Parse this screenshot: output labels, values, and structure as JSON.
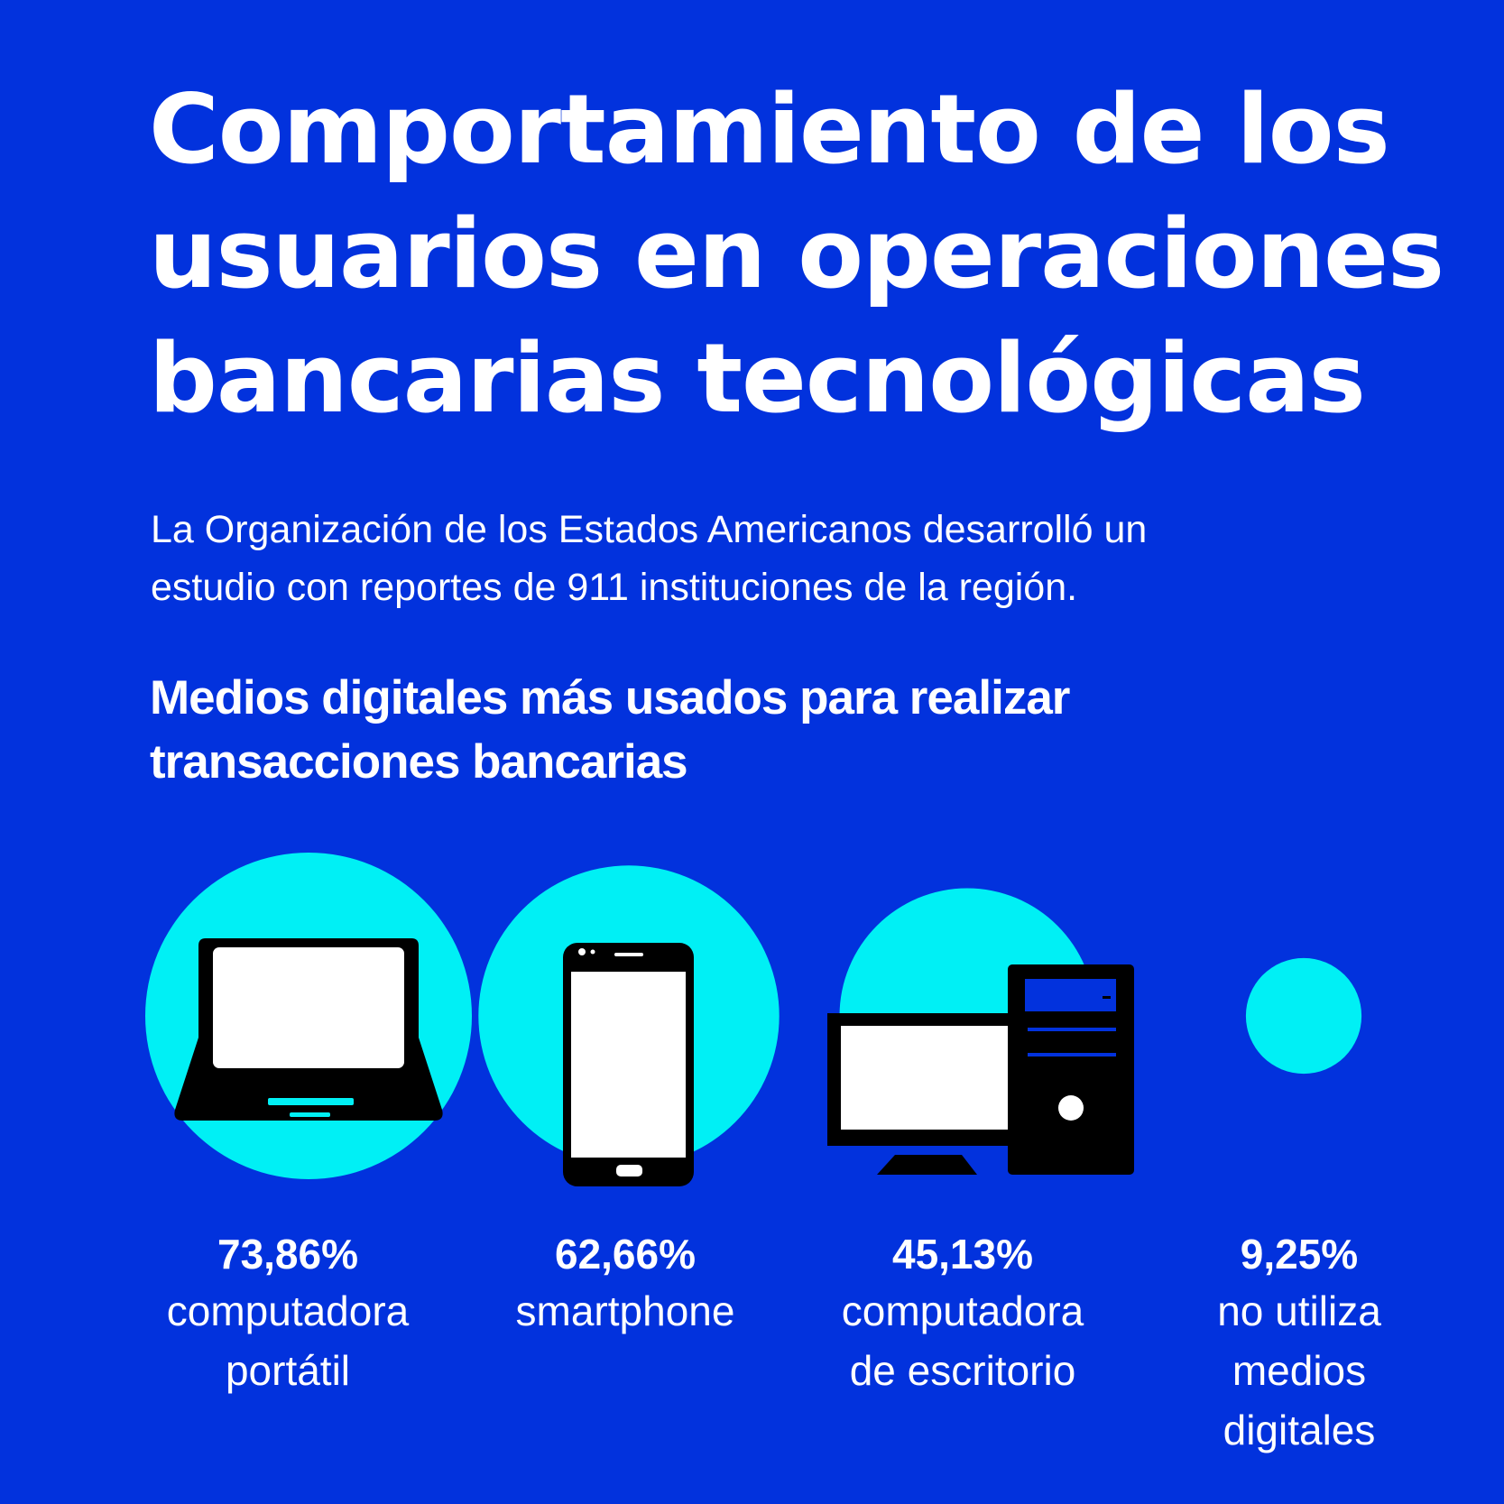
{
  "title": {
    "line1": "Comportamiento de los",
    "line2": "usuarios en operaciones",
    "line3": "bancarias tecnológicas"
  },
  "intro": {
    "line1": "La Organización de los Estados Americanos desarrolló un",
    "line2": "estudio con reportes de 911 instituciones de la región."
  },
  "colors": {
    "background": "#0232DD",
    "circle": "#00F0F5",
    "icon": "#000000",
    "screen": "#FFFFFF",
    "text": "#FFFFFF"
  },
  "chart_data": {
    "type": "bubble",
    "title": "Medios digitales más usados para realizar transacciones bancarias",
    "title_lines": [
      "Medios digitales más usados para realizar",
      "transacciones bancarias"
    ],
    "unit": "%",
    "categories": [
      "computadora portátil",
      "smartphone",
      "computadora de escritorio",
      "no utiliza medios digitales"
    ],
    "values": [
      73.86,
      62.66,
      45.13,
      9.25
    ],
    "items": [
      {
        "value_label": "73,86%",
        "label_lines": [
          "computadora",
          "portátil"
        ],
        "icon": "laptop-icon"
      },
      {
        "value_label": "62,66%",
        "label_lines": [
          "smartphone"
        ],
        "icon": "smartphone-icon"
      },
      {
        "value_label": "45,13%",
        "label_lines": [
          "computadora",
          "de escritorio"
        ],
        "icon": "desktop-computer-icon"
      },
      {
        "value_label": "9,25%",
        "label_lines": [
          "no utiliza",
          "medios",
          "digitales"
        ],
        "icon": ""
      }
    ]
  }
}
